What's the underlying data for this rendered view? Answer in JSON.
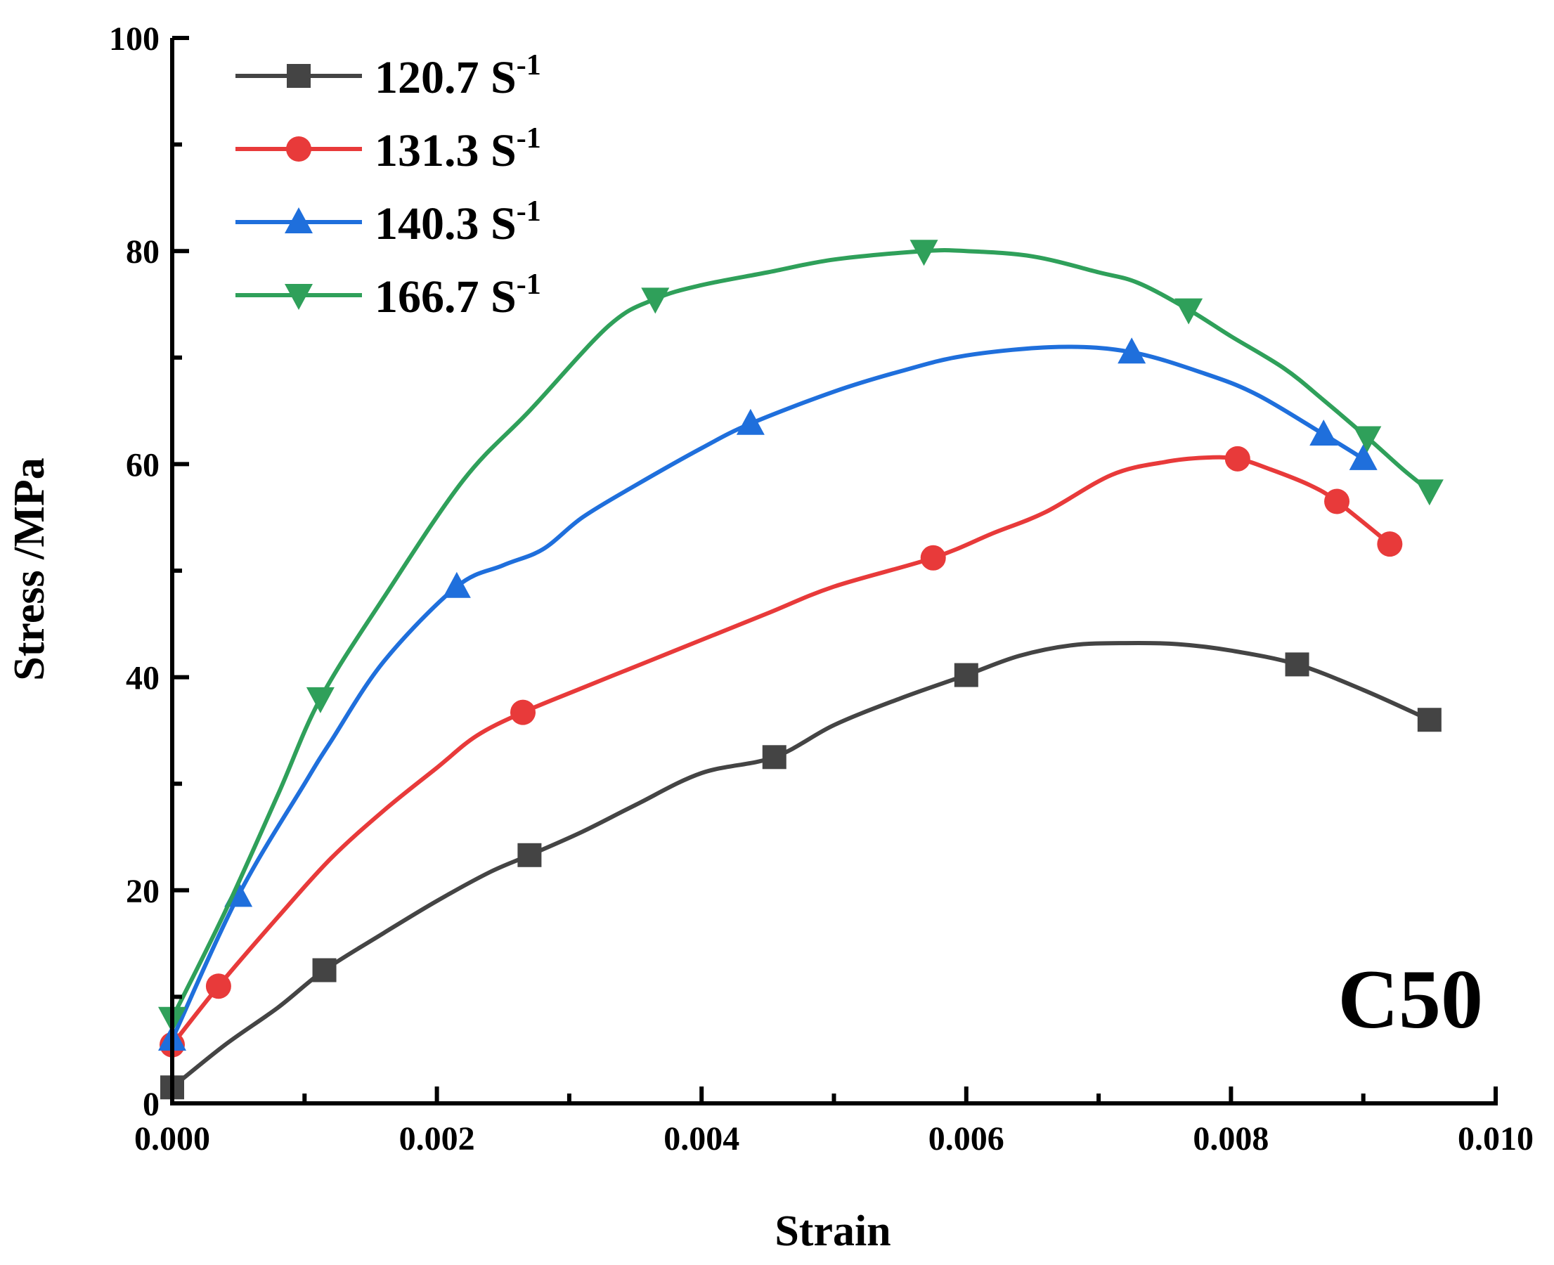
{
  "chart_data": {
    "type": "line",
    "title": "",
    "xlabel": "Strain",
    "ylabel": "Stress /MPa",
    "xlim": [
      0.0,
      0.01
    ],
    "ylim": [
      0,
      100
    ],
    "x_ticks": [
      0.0,
      0.002,
      0.004,
      0.006,
      0.008,
      0.01
    ],
    "x_tick_labels": [
      "0.000",
      "0.002",
      "0.004",
      "0.006",
      "0.008",
      "0.010"
    ],
    "y_ticks": [
      0,
      20,
      40,
      60,
      80,
      100
    ],
    "y_tick_labels": [
      "0",
      "20",
      "40",
      "60",
      "80",
      "100"
    ],
    "grid": false,
    "legend_position": "top-left",
    "annotation": "C50",
    "series": [
      {
        "name": "120.7 S",
        "name_sup": "-1",
        "color": "#444444",
        "marker": "square",
        "x": [
          0.0,
          0.0004,
          0.0008,
          0.00115,
          0.0016,
          0.002,
          0.0024,
          0.0027,
          0.0031,
          0.0035,
          0.004,
          0.00455,
          0.005,
          0.0055,
          0.006,
          0.0064,
          0.0068,
          0.0072,
          0.0076,
          0.008,
          0.0085,
          0.009,
          0.0095
        ],
        "y": [
          1.5,
          5.5,
          9.0,
          12.5,
          16.0,
          19.0,
          21.7,
          23.3,
          25.5,
          28.0,
          31.0,
          32.5,
          35.5,
          38.0,
          40.2,
          42.0,
          43.0,
          43.2,
          43.1,
          42.5,
          41.2,
          38.8,
          36.0
        ],
        "marker_x": [
          0.0,
          0.00115,
          0.0027,
          0.00455,
          0.006,
          0.0085,
          0.0095
        ],
        "marker_y": [
          1.5,
          12.5,
          23.3,
          32.5,
          40.2,
          41.2,
          36.0
        ]
      },
      {
        "name": "131.3 S",
        "name_sup": "-1",
        "color": "#e83a3a",
        "marker": "circle",
        "x": [
          0.0,
          0.00035,
          0.0008,
          0.0012,
          0.0016,
          0.002,
          0.0023,
          0.00265,
          0.0031,
          0.0036,
          0.004,
          0.0045,
          0.005,
          0.00575,
          0.0062,
          0.0066,
          0.0071,
          0.0075,
          0.0078,
          0.00805,
          0.0083,
          0.0086,
          0.0088,
          0.0092
        ],
        "y": [
          5.5,
          11.0,
          17.5,
          23.0,
          27.5,
          31.5,
          34.5,
          36.7,
          39.0,
          41.5,
          43.5,
          46.0,
          48.5,
          51.2,
          53.5,
          55.5,
          59.0,
          60.2,
          60.6,
          60.5,
          59.5,
          58.0,
          56.5,
          52.5
        ],
        "marker_x": [
          0.0,
          0.00035,
          0.00265,
          0.00575,
          0.00805,
          0.0088,
          0.0092
        ],
        "marker_y": [
          5.5,
          11.0,
          36.7,
          51.2,
          60.5,
          56.5,
          52.5
        ]
      },
      {
        "name": "140.3 S",
        "name_sup": "-1",
        "color": "#1f6fdc",
        "marker": "triangle-up",
        "x": [
          0.0,
          0.0005,
          0.001,
          0.0012,
          0.0016,
          0.00215,
          0.0025,
          0.0028,
          0.0031,
          0.0035,
          0.004,
          0.00437,
          0.005,
          0.0055,
          0.006,
          0.0067,
          0.00725,
          0.0078,
          0.0082,
          0.0087,
          0.009
        ],
        "y": [
          6.0,
          19.5,
          30.0,
          34.0,
          41.5,
          48.5,
          50.5,
          52.0,
          55.0,
          58.0,
          61.5,
          63.8,
          66.8,
          68.7,
          70.2,
          71.0,
          70.5,
          68.5,
          66.5,
          62.8,
          60.5
        ],
        "marker_x": [
          0.0,
          0.0005,
          0.00215,
          0.00437,
          0.00725,
          0.0087,
          0.009
        ],
        "marker_y": [
          6.0,
          19.5,
          48.5,
          63.8,
          70.5,
          62.8,
          60.5
        ]
      },
      {
        "name": "166.7 S",
        "name_sup": "-1",
        "color": "#2fa05a",
        "marker": "triangle-down",
        "x": [
          0.0,
          0.0004,
          0.0008,
          0.00112,
          0.0016,
          0.0022,
          0.0027,
          0.0033,
          0.00365,
          0.004,
          0.0045,
          0.005,
          0.00568,
          0.006,
          0.0065,
          0.007,
          0.0073,
          0.00768,
          0.008,
          0.0084,
          0.0087,
          0.00903,
          0.0093,
          0.0095
        ],
        "y": [
          8.0,
          18.0,
          29.0,
          38.0,
          47.5,
          58.5,
          65.0,
          73.0,
          75.5,
          76.8,
          78.0,
          79.2,
          80.0,
          80.0,
          79.5,
          78.0,
          77.0,
          74.5,
          72.0,
          69.0,
          66.0,
          62.5,
          59.5,
          57.5
        ],
        "marker_x": [
          0.0,
          0.00112,
          0.00365,
          0.00568,
          0.00768,
          0.00903,
          0.0095
        ],
        "marker_y": [
          8.0,
          38.0,
          75.5,
          80.0,
          74.5,
          62.5,
          57.5
        ]
      }
    ]
  }
}
